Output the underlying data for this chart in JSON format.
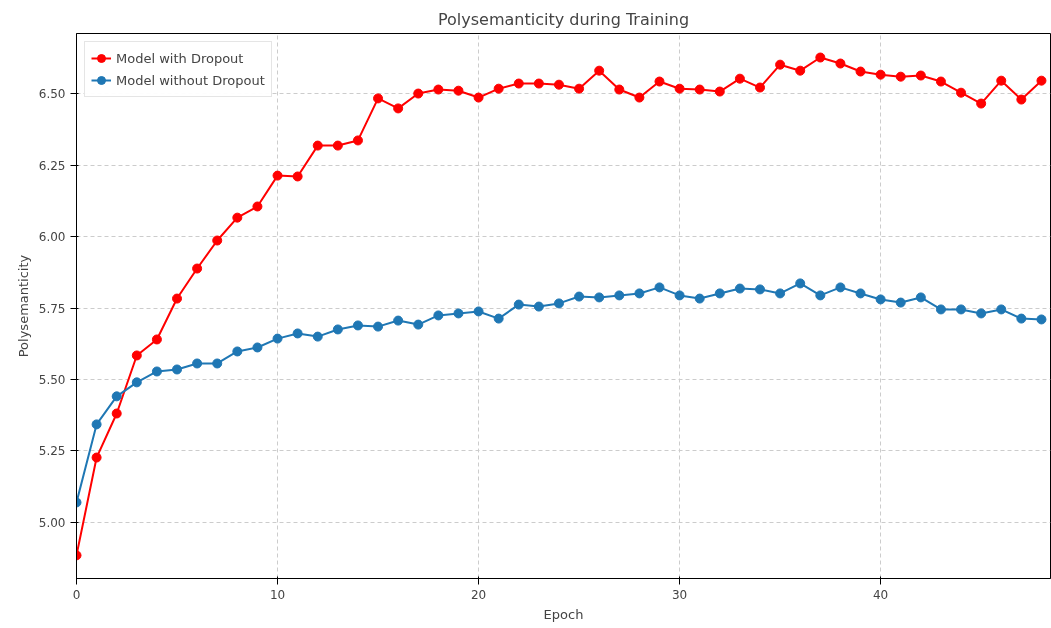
{
  "chart_data": {
    "type": "line",
    "title": "Polysemanticity during Training",
    "xlabel": "Epoch",
    "ylabel": "Polysemanticity",
    "x": [
      0,
      1,
      2,
      3,
      4,
      5,
      6,
      7,
      8,
      9,
      10,
      11,
      12,
      13,
      14,
      15,
      16,
      17,
      18,
      19,
      20,
      21,
      22,
      23,
      24,
      25,
      26,
      27,
      28,
      29,
      30,
      31,
      32,
      33,
      34,
      35,
      36,
      37,
      38,
      39,
      40,
      41,
      42,
      43,
      44,
      45,
      46,
      47,
      48
    ],
    "series": [
      {
        "name": "Model with Dropout",
        "color": "#ff0000",
        "values": [
          4.885,
          5.227,
          5.381,
          5.584,
          5.64,
          5.783,
          5.888,
          5.986,
          6.066,
          6.105,
          6.213,
          6.21,
          6.318,
          6.318,
          6.336,
          6.483,
          6.448,
          6.5,
          6.514,
          6.51,
          6.486,
          6.517,
          6.535,
          6.535,
          6.531,
          6.517,
          6.58,
          6.514,
          6.486,
          6.542,
          6.517,
          6.514,
          6.507,
          6.552,
          6.521,
          6.601,
          6.58,
          6.626,
          6.605,
          6.577,
          6.566,
          6.559,
          6.563,
          6.542,
          6.503,
          6.465,
          6.545,
          6.479,
          6.545
        ]
      },
      {
        "name": "Model without Dropout",
        "color": "#1f77b4",
        "values": [
          5.07,
          5.343,
          5.441,
          5.49,
          5.528,
          5.535,
          5.556,
          5.556,
          5.598,
          5.612,
          5.643,
          5.661,
          5.65,
          5.675,
          5.689,
          5.685,
          5.706,
          5.692,
          5.724,
          5.731,
          5.738,
          5.713,
          5.762,
          5.755,
          5.766,
          5.79,
          5.787,
          5.794,
          5.801,
          5.822,
          5.794,
          5.783,
          5.801,
          5.818,
          5.815,
          5.801,
          5.836,
          5.794,
          5.822,
          5.801,
          5.78,
          5.769,
          5.787,
          5.745,
          5.745,
          5.731,
          5.745,
          5.713,
          5.71
        ]
      }
    ],
    "xlim": [
      0,
      48.45
    ],
    "ylim": [
      4.804,
      6.71
    ],
    "xticks": [
      0,
      10,
      20,
      30,
      40
    ],
    "yticks": [
      {
        "value": 5.0,
        "label": "5.00"
      },
      {
        "value": 5.25,
        "label": "5.25"
      },
      {
        "value": 5.5,
        "label": "5.50"
      },
      {
        "value": 5.75,
        "label": "5.75"
      },
      {
        "value": 6.0,
        "label": "6.00"
      },
      {
        "value": 6.25,
        "label": "6.25"
      },
      {
        "value": 6.5,
        "label": "6.50"
      }
    ],
    "grid": true,
    "legend": "top left",
    "marker": "circle",
    "line_style": "solid"
  }
}
